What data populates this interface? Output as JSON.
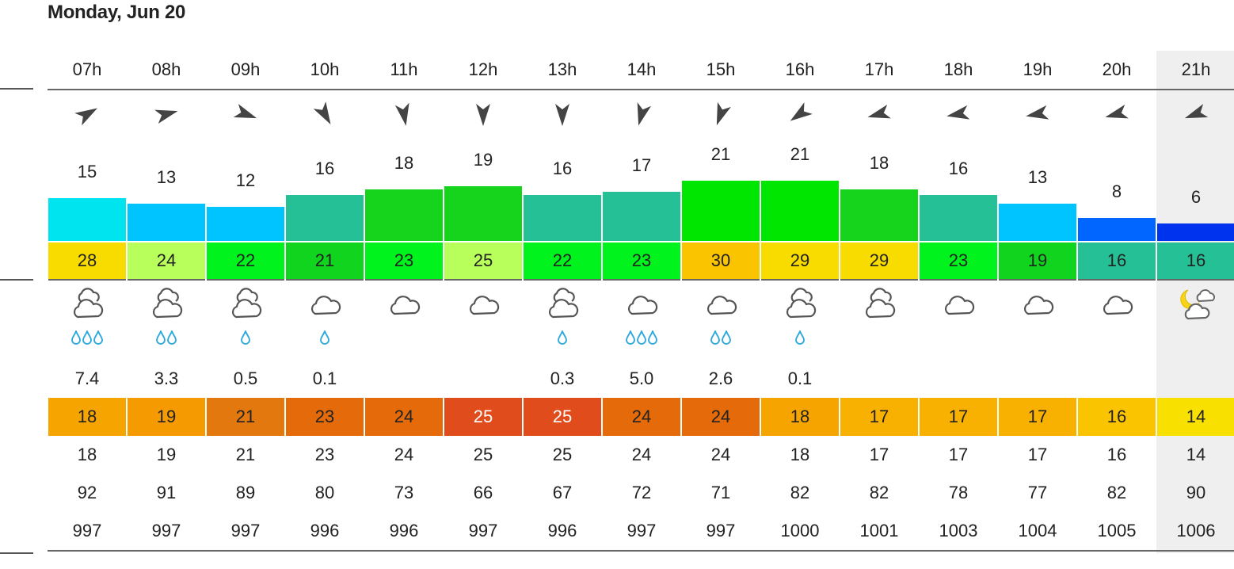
{
  "day_title": "Monday, Jun 20",
  "columns": [
    {
      "hour": "07h",
      "dir_deg": 60,
      "speed": "15",
      "speed_color": "#00e4f0",
      "gust": "28",
      "gust_color": "#f8dc00",
      "weather": "cloudy-rain",
      "drops": 3,
      "precip": "7.4",
      "temp": "18",
      "temp_color": "#f6a400",
      "temp_text_color": "#222222",
      "feels": "18",
      "humidity": "92",
      "pressure": "997",
      "highlight": false
    },
    {
      "hour": "08h",
      "dir_deg": 75,
      "speed": "13",
      "speed_color": "#00c4ff",
      "gust": "24",
      "gust_color": "#b8ff5c",
      "weather": "cloudy-rain",
      "drops": 2,
      "precip": "3.3",
      "temp": "19",
      "temp_color": "#f59a00",
      "temp_text_color": "#222222",
      "feels": "19",
      "humidity": "91",
      "pressure": "997",
      "highlight": false
    },
    {
      "hour": "09h",
      "dir_deg": 110,
      "speed": "12",
      "speed_color": "#00c4ff",
      "gust": "22",
      "gust_color": "#00f31d",
      "weather": "cloudy-rain",
      "drops": 1,
      "precip": "0.5",
      "temp": "21",
      "temp_color": "#e2780e",
      "temp_text_color": "#222222",
      "feels": "21",
      "humidity": "89",
      "pressure": "997",
      "highlight": false
    },
    {
      "hour": "10h",
      "dir_deg": 150,
      "speed": "16",
      "speed_color": "#25c095",
      "gust": "21",
      "gust_color": "#10d41e",
      "weather": "cloud",
      "drops": 1,
      "precip": "0.1",
      "temp": "23",
      "temp_color": "#e56b0a",
      "temp_text_color": "#222222",
      "feels": "23",
      "humidity": "80",
      "pressure": "996",
      "highlight": false
    },
    {
      "hour": "11h",
      "dir_deg": 170,
      "speed": "18",
      "speed_color": "#15d41b",
      "gust": "23",
      "gust_color": "#00f31d",
      "weather": "cloud",
      "drops": 0,
      "precip": "",
      "temp": "24",
      "temp_color": "#e56b0a",
      "temp_text_color": "#222222",
      "feels": "24",
      "humidity": "73",
      "pressure": "996",
      "highlight": false
    },
    {
      "hour": "12h",
      "dir_deg": 180,
      "speed": "19",
      "speed_color": "#15d41b",
      "gust": "25",
      "gust_color": "#b8ff5c",
      "weather": "cloud",
      "drops": 0,
      "precip": "",
      "temp": "25",
      "temp_color": "#e04c1c",
      "temp_text_color": "#ffffff",
      "feels": "25",
      "humidity": "66",
      "pressure": "997",
      "highlight": false
    },
    {
      "hour": "13h",
      "dir_deg": 180,
      "speed": "16",
      "speed_color": "#25c095",
      "gust": "22",
      "gust_color": "#00f31d",
      "weather": "cloudy-rain",
      "drops": 1,
      "precip": "0.3",
      "temp": "25",
      "temp_color": "#e04c1c",
      "temp_text_color": "#ffffff",
      "feels": "25",
      "humidity": "67",
      "pressure": "996",
      "highlight": false
    },
    {
      "hour": "14h",
      "dir_deg": 195,
      "speed": "17",
      "speed_color": "#25c095",
      "gust": "23",
      "gust_color": "#00f31d",
      "weather": "cloud",
      "drops": 3,
      "precip": "5.0",
      "temp": "24",
      "temp_color": "#e56b0a",
      "temp_text_color": "#222222",
      "feels": "24",
      "humidity": "72",
      "pressure": "997",
      "highlight": false
    },
    {
      "hour": "15h",
      "dir_deg": 200,
      "speed": "21",
      "speed_color": "#00e600",
      "gust": "30",
      "gust_color": "#fbc400",
      "weather": "cloud",
      "drops": 2,
      "precip": "2.6",
      "temp": "24",
      "temp_color": "#e56b0a",
      "temp_text_color": "#222222",
      "feels": "24",
      "humidity": "71",
      "pressure": "997",
      "highlight": false
    },
    {
      "hour": "16h",
      "dir_deg": 235,
      "speed": "21",
      "speed_color": "#00e600",
      "gust": "29",
      "gust_color": "#f8dc00",
      "weather": "cloudy-rain",
      "drops": 1,
      "precip": "0.1",
      "temp": "18",
      "temp_color": "#f6a400",
      "temp_text_color": "#222222",
      "feels": "18",
      "humidity": "82",
      "pressure": "1000",
      "highlight": false
    },
    {
      "hour": "17h",
      "dir_deg": 255,
      "speed": "18",
      "speed_color": "#15d41b",
      "gust": "29",
      "gust_color": "#f8dc00",
      "weather": "cloudy-rain",
      "drops": 0,
      "precip": "",
      "temp": "17",
      "temp_color": "#f8b100",
      "temp_text_color": "#222222",
      "feels": "17",
      "humidity": "82",
      "pressure": "1001",
      "highlight": false
    },
    {
      "hour": "18h",
      "dir_deg": 260,
      "speed": "16",
      "speed_color": "#25c095",
      "gust": "23",
      "gust_color": "#00f31d",
      "weather": "cloud",
      "drops": 0,
      "precip": "",
      "temp": "17",
      "temp_color": "#f8b100",
      "temp_text_color": "#222222",
      "feels": "17",
      "humidity": "78",
      "pressure": "1003",
      "highlight": false
    },
    {
      "hour": "19h",
      "dir_deg": 260,
      "speed": "13",
      "speed_color": "#00c4ff",
      "gust": "19",
      "gust_color": "#10d41e",
      "weather": "cloud",
      "drops": 0,
      "precip": "",
      "temp": "17",
      "temp_color": "#f8b100",
      "temp_text_color": "#222222",
      "feels": "17",
      "humidity": "77",
      "pressure": "1004",
      "highlight": false
    },
    {
      "hour": "20h",
      "dir_deg": 255,
      "speed": "8",
      "speed_color": "#0066ff",
      "gust": "16",
      "gust_color": "#25c095",
      "weather": "cloud",
      "drops": 0,
      "precip": "",
      "temp": "16",
      "temp_color": "#fbc400",
      "temp_text_color": "#222222",
      "feels": "16",
      "humidity": "82",
      "pressure": "1005",
      "highlight": false
    },
    {
      "hour": "21h",
      "dir_deg": 250,
      "speed": "6",
      "speed_color": "#0033ee",
      "gust": "16",
      "gust_color": "#25c095",
      "weather": "moon-cloud",
      "drops": 0,
      "precip": "",
      "temp": "14",
      "temp_color": "#f8e000",
      "temp_text_color": "#222222",
      "feels": "14",
      "humidity": "90",
      "pressure": "1006",
      "highlight": true
    }
  ]
}
